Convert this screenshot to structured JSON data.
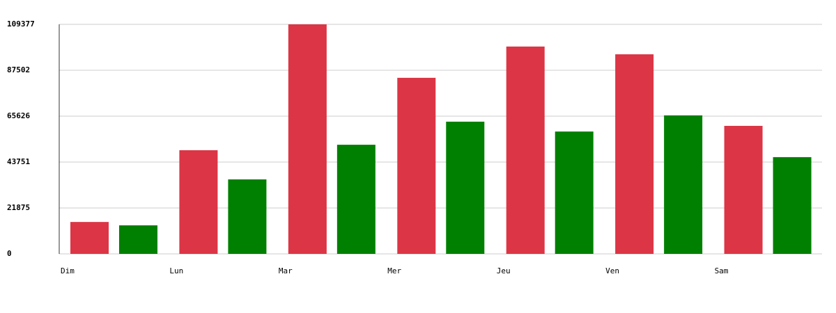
{
  "chart_data": {
    "type": "grouped-bar",
    "categories": [
      "Dim",
      "Lun",
      "Mar",
      "Mer",
      "Jeu",
      "Ven",
      "Sam"
    ],
    "series": [
      {
        "color": "#dc3545",
        "values": [
          15200,
          49400,
          109377,
          83900,
          98800,
          95100,
          61000
        ]
      },
      {
        "color": "#008000",
        "values": [
          13600,
          35500,
          52000,
          63000,
          58300,
          66000,
          46100
        ]
      }
    ],
    "ylim": [
      0,
      109377
    ],
    "yticks": [
      0,
      21875,
      43751,
      65626,
      87502,
      109377
    ],
    "grid": true
  }
}
